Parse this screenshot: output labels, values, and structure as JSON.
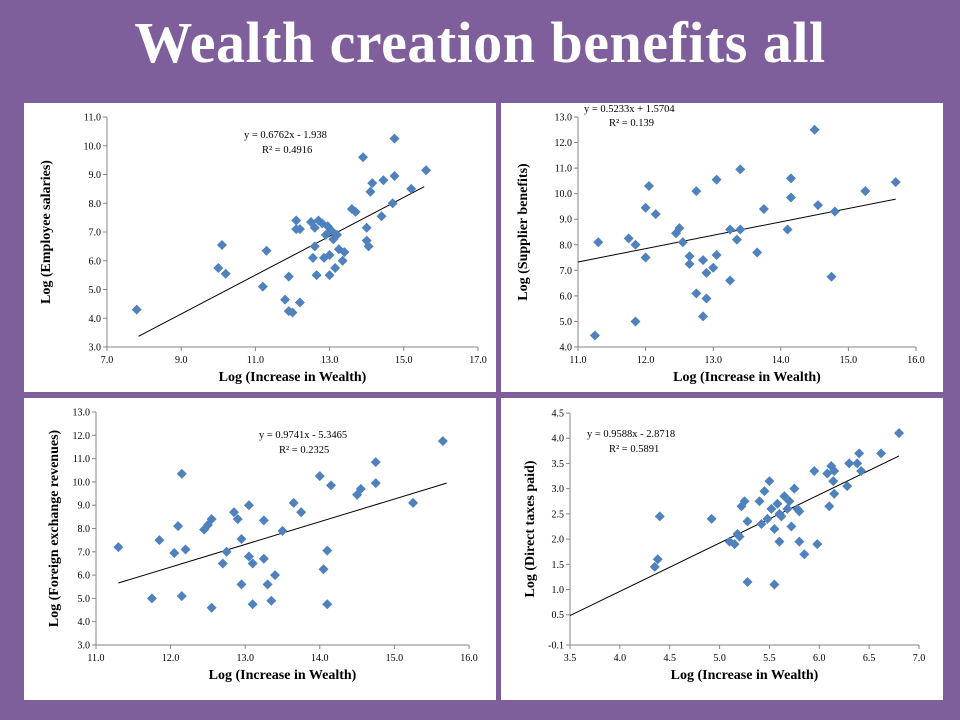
{
  "slide": {
    "title": "Wealth creation benefits all"
  },
  "chart_data": [
    {
      "type": "scatter",
      "xlabel": "Log (Increase in Wealth)",
      "ylabel": "Log (Employee salaries)",
      "xlim": [
        7.0,
        17.0
      ],
      "ylim": [
        3.0,
        11.0
      ],
      "xticks": [
        "7.0",
        "9.0",
        "11.0",
        "13.0",
        "15.0",
        "17.0"
      ],
      "yticks": [
        "3.0",
        "4.0",
        "5.0",
        "6.0",
        "7.0",
        "8.0",
        "9.0",
        "10.0",
        "11.0"
      ],
      "equation": "y = 0.6762x - 1.938",
      "r2": "R² = 0.4916",
      "trend": {
        "slope": 0.6762,
        "intercept": -1.938,
        "x_from": 7.85,
        "x_to": 15.55
      },
      "marker_color": "#4f81bd",
      "points": [
        [
          7.8,
          4.3
        ],
        [
          10.0,
          5.75
        ],
        [
          10.1,
          6.55
        ],
        [
          10.2,
          5.55
        ],
        [
          11.2,
          5.1
        ],
        [
          11.3,
          6.35
        ],
        [
          11.8,
          4.65
        ],
        [
          11.9,
          4.25
        ],
        [
          11.9,
          5.45
        ],
        [
          12.0,
          4.2
        ],
        [
          12.1,
          7.1
        ],
        [
          12.1,
          7.4
        ],
        [
          12.2,
          4.55
        ],
        [
          12.2,
          7.1
        ],
        [
          12.5,
          7.35
        ],
        [
          12.55,
          6.1
        ],
        [
          12.6,
          6.5
        ],
        [
          12.6,
          7.15
        ],
        [
          12.65,
          5.5
        ],
        [
          12.7,
          7.4
        ],
        [
          12.8,
          7.3
        ],
        [
          12.85,
          6.1
        ],
        [
          12.9,
          6.9
        ],
        [
          12.95,
          7.2
        ],
        [
          13.0,
          5.5
        ],
        [
          13.0,
          6.2
        ],
        [
          13.05,
          7.05
        ],
        [
          13.1,
          6.75
        ],
        [
          13.15,
          5.75
        ],
        [
          13.2,
          6.9
        ],
        [
          13.25,
          6.4
        ],
        [
          13.35,
          6.0
        ],
        [
          13.4,
          6.3
        ],
        [
          13.6,
          7.8
        ],
        [
          13.7,
          7.7
        ],
        [
          13.9,
          9.6
        ],
        [
          14.0,
          7.15
        ],
        [
          14.0,
          6.7
        ],
        [
          14.05,
          6.5
        ],
        [
          14.1,
          8.4
        ],
        [
          14.15,
          8.7
        ],
        [
          14.4,
          7.55
        ],
        [
          14.45,
          8.8
        ],
        [
          14.7,
          8.0
        ],
        [
          14.75,
          8.95
        ],
        [
          14.75,
          10.25
        ],
        [
          15.2,
          8.5
        ],
        [
          15.6,
          9.15
        ]
      ]
    },
    {
      "type": "scatter",
      "xlabel": "Log (Increase in Wealth)",
      "ylabel": "Log (Supplier benefits)",
      "xlim": [
        11.0,
        16.0
      ],
      "ylim": [
        4.0,
        13.0
      ],
      "xticks": [
        "11.0",
        "12.0",
        "13.0",
        "14.0",
        "15.0",
        "16.0"
      ],
      "yticks": [
        "4.0",
        "5.0",
        "6.0",
        "7.0",
        "8.0",
        "9.0",
        "10.0",
        "11.0",
        "12.0",
        "13.0"
      ],
      "equation": "y = 0.5233x + 1.5704",
      "r2": "R² = 0.139",
      "trend": {
        "slope": 0.5233,
        "intercept": 1.5704,
        "x_from": 11.0,
        "x_to": 15.7
      },
      "marker_color": "#4f81bd",
      "points": [
        [
          11.25,
          4.45
        ],
        [
          11.3,
          8.1
        ],
        [
          11.75,
          8.25
        ],
        [
          11.85,
          5.0
        ],
        [
          11.85,
          8.0
        ],
        [
          12.0,
          7.5
        ],
        [
          12.0,
          9.45
        ],
        [
          12.05,
          10.3
        ],
        [
          12.15,
          9.2
        ],
        [
          12.45,
          8.45
        ],
        [
          12.5,
          8.65
        ],
        [
          12.55,
          8.1
        ],
        [
          12.65,
          7.25
        ],
        [
          12.65,
          7.55
        ],
        [
          12.75,
          6.1
        ],
        [
          12.75,
          10.1
        ],
        [
          12.85,
          5.2
        ],
        [
          12.85,
          7.4
        ],
        [
          12.9,
          6.9
        ],
        [
          12.9,
          5.9
        ],
        [
          13.0,
          7.1
        ],
        [
          13.05,
          7.6
        ],
        [
          13.05,
          10.55
        ],
        [
          13.25,
          6.6
        ],
        [
          13.25,
          8.6
        ],
        [
          13.35,
          8.2
        ],
        [
          13.4,
          8.6
        ],
        [
          13.4,
          10.95
        ],
        [
          13.65,
          7.7
        ],
        [
          13.75,
          9.4
        ],
        [
          14.1,
          8.6
        ],
        [
          14.15,
          10.6
        ],
        [
          14.15,
          9.85
        ],
        [
          14.5,
          12.5
        ],
        [
          14.55,
          9.55
        ],
        [
          14.75,
          6.75
        ],
        [
          14.8,
          9.3
        ],
        [
          15.25,
          10.1
        ],
        [
          15.7,
          10.45
        ]
      ]
    },
    {
      "type": "scatter",
      "xlabel": "Log (Increase in Wealth)",
      "ylabel": "Log (Foreign exchange revenues)",
      "xlim": [
        11.0,
        16.0
      ],
      "ylim": [
        3.0,
        13.0
      ],
      "xticks": [
        "11.0",
        "12.0",
        "13.0",
        "14.0",
        "15.0",
        "16.0"
      ],
      "yticks": [
        "3.0",
        "4.0",
        "5.0",
        "6.0",
        "7.0",
        "8.0",
        "9.0",
        "10.0",
        "11.0",
        "12.0",
        "13.0"
      ],
      "equation": "y = 0.9741x - 5.3465",
      "r2": "R² = 0.2325",
      "trend": {
        "slope": 0.9741,
        "intercept": -5.3465,
        "x_from": 11.3,
        "x_to": 15.7
      },
      "marker_color": "#4f81bd",
      "points": [
        [
          11.3,
          7.2
        ],
        [
          11.75,
          5.0
        ],
        [
          11.85,
          7.5
        ],
        [
          12.05,
          6.95
        ],
        [
          12.1,
          8.1
        ],
        [
          12.15,
          5.1
        ],
        [
          12.15,
          10.35
        ],
        [
          12.2,
          7.1
        ],
        [
          12.45,
          7.95
        ],
        [
          12.5,
          8.15
        ],
        [
          12.55,
          8.4
        ],
        [
          12.55,
          4.6
        ],
        [
          12.7,
          6.5
        ],
        [
          12.75,
          7.0
        ],
        [
          12.85,
          8.7
        ],
        [
          12.9,
          8.4
        ],
        [
          12.95,
          7.55
        ],
        [
          12.95,
          5.6
        ],
        [
          13.05,
          6.8
        ],
        [
          13.05,
          9.0
        ],
        [
          13.1,
          6.5
        ],
        [
          13.1,
          4.75
        ],
        [
          13.25,
          8.35
        ],
        [
          13.25,
          6.7
        ],
        [
          13.3,
          5.6
        ],
        [
          13.35,
          4.9
        ],
        [
          13.4,
          6.0
        ],
        [
          13.5,
          7.9
        ],
        [
          13.65,
          9.1
        ],
        [
          13.75,
          8.7
        ],
        [
          14.0,
          10.25
        ],
        [
          14.05,
          6.25
        ],
        [
          14.1,
          7.05
        ],
        [
          14.1,
          4.75
        ],
        [
          14.15,
          9.85
        ],
        [
          14.5,
          9.45
        ],
        [
          14.55,
          9.7
        ],
        [
          14.75,
          10.85
        ],
        [
          14.75,
          9.95
        ],
        [
          15.25,
          9.1
        ],
        [
          15.65,
          11.75
        ]
      ]
    },
    {
      "type": "scatter",
      "xlabel": "Log (Increase in Wealth)",
      "ylabel": "Log (Direct taxes paid)",
      "xlim": [
        3.5,
        7.0
      ],
      "ylim": [
        -0.1,
        4.5
      ],
      "xticks": [
        "3.5",
        "4.0",
        "4.5",
        "5.0",
        "5.5",
        "6.0",
        "6.5",
        "7.0"
      ],
      "yticks": [
        "-0.1",
        "0.5",
        "1.0",
        "1.5",
        "2.0",
        "2.5",
        "3.0",
        "3.5",
        "4.0",
        "4.5"
      ],
      "equation": "y = 0.9588x - 2.8718",
      "r2": "R² = 0.5891",
      "trend": {
        "slope": 0.9588,
        "intercept": -2.8718,
        "x_from": 3.5,
        "x_to": 6.8
      },
      "marker_color": "#4f81bd",
      "points": [
        [
          4.35,
          1.45
        ],
        [
          4.38,
          1.6
        ],
        [
          4.4,
          2.45
        ],
        [
          4.92,
          2.4
        ],
        [
          5.1,
          1.95
        ],
        [
          5.15,
          1.9
        ],
        [
          5.18,
          2.1
        ],
        [
          5.2,
          2.05
        ],
        [
          5.22,
          2.65
        ],
        [
          5.25,
          2.75
        ],
        [
          5.28,
          1.15
        ],
        [
          5.28,
          2.35
        ],
        [
          5.4,
          2.75
        ],
        [
          5.42,
          2.3
        ],
        [
          5.45,
          2.95
        ],
        [
          5.48,
          2.4
        ],
        [
          5.5,
          3.15
        ],
        [
          5.52,
          2.6
        ],
        [
          5.55,
          2.2
        ],
        [
          5.55,
          1.1
        ],
        [
          5.58,
          2.7
        ],
        [
          5.6,
          2.5
        ],
        [
          5.6,
          1.95
        ],
        [
          5.62,
          2.45
        ],
        [
          5.65,
          2.85
        ],
        [
          5.68,
          2.6
        ],
        [
          5.7,
          2.75
        ],
        [
          5.72,
          2.25
        ],
        [
          5.75,
          3.0
        ],
        [
          5.78,
          2.6
        ],
        [
          5.8,
          2.55
        ],
        [
          5.8,
          1.95
        ],
        [
          5.85,
          1.7
        ],
        [
          5.95,
          3.35
        ],
        [
          5.98,
          1.9
        ],
        [
          6.08,
          3.3
        ],
        [
          6.1,
          2.65
        ],
        [
          6.12,
          3.45
        ],
        [
          6.14,
          3.15
        ],
        [
          6.15,
          2.9
        ],
        [
          6.15,
          3.35
        ],
        [
          6.28,
          3.05
        ],
        [
          6.3,
          3.5
        ],
        [
          6.38,
          3.5
        ],
        [
          6.4,
          3.7
        ],
        [
          6.42,
          3.35
        ],
        [
          6.62,
          3.7
        ],
        [
          6.8,
          4.1
        ]
      ]
    }
  ]
}
